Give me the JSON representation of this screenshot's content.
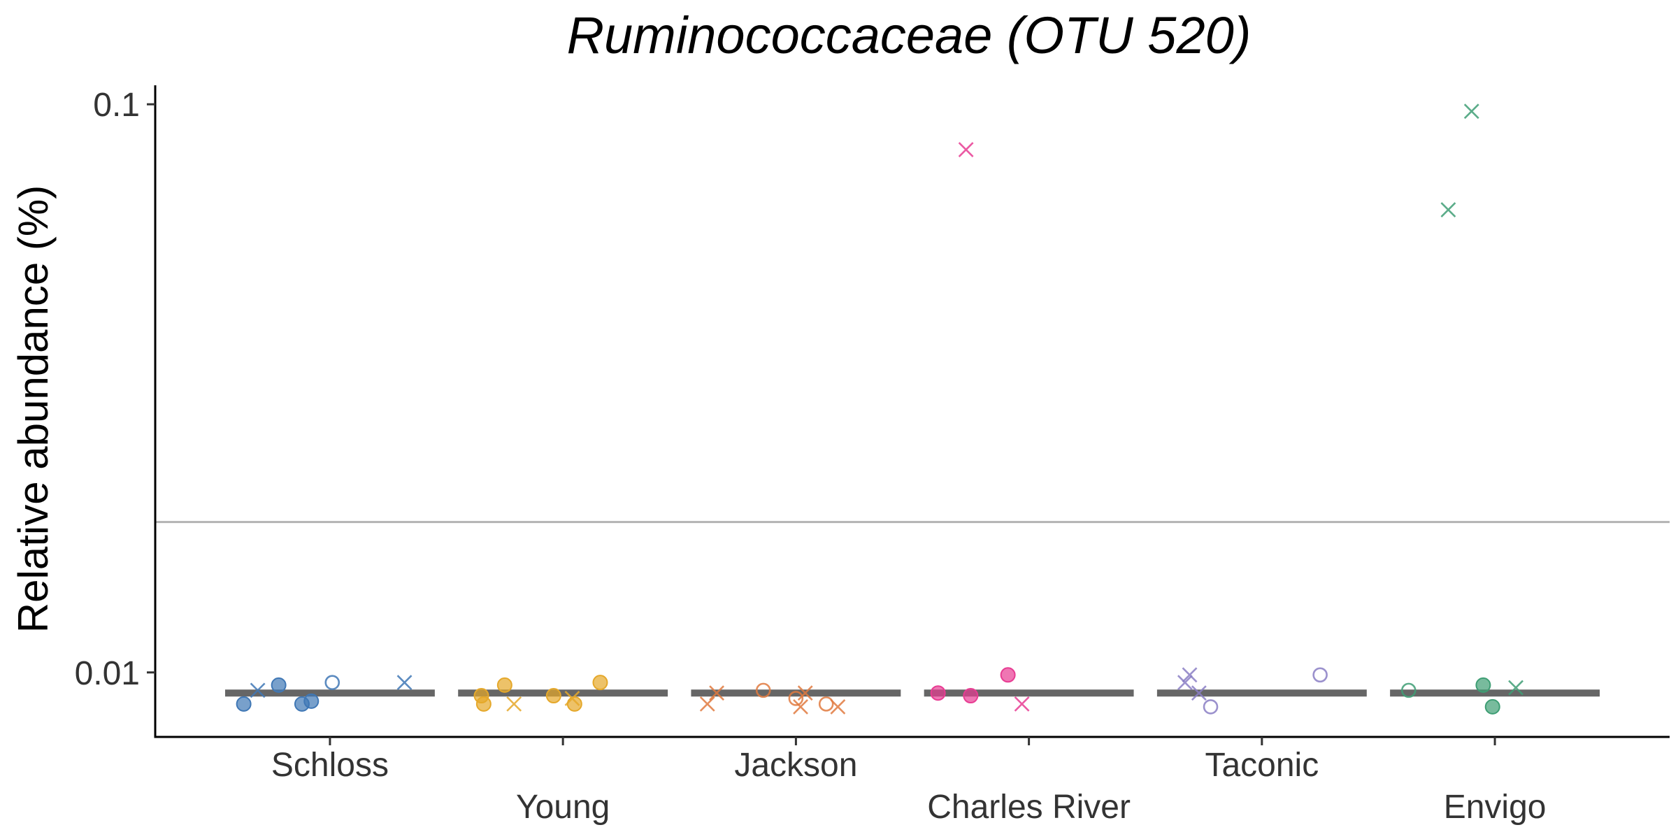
{
  "chart_data": {
    "type": "scatter",
    "title": "Ruminococcaceae (OTU 520)",
    "xlabel": "",
    "ylabel": "Relative abundance (%)",
    "y_scale": "log10",
    "ylim": [
      0.0077,
      0.108
    ],
    "yticks": [
      {
        "value": 0.01,
        "label": "0.01"
      },
      {
        "value": 0.1,
        "label": "0.1"
      }
    ],
    "categories": [
      "Schloss",
      "Young",
      "Jackson",
      "Charles River",
      "Taconic",
      "Envigo"
    ],
    "limit_of_detection": 0.0184,
    "medians": [
      0.0092,
      0.0092,
      0.0092,
      0.0092,
      0.0092,
      0.0092
    ],
    "series": [
      {
        "category": "Schloss",
        "color": "#3F77B5",
        "points": [
          {
            "x": -0.37,
            "y": 0.0088,
            "shape": "filled"
          },
          {
            "x": -0.31,
            "y": 0.0093,
            "shape": "x"
          },
          {
            "x": -0.22,
            "y": 0.0095,
            "shape": "filled"
          },
          {
            "x": -0.12,
            "y": 0.0088,
            "shape": "filled"
          },
          {
            "x": -0.08,
            "y": 0.0089,
            "shape": "filled"
          },
          {
            "x": 0.01,
            "y": 0.0096,
            "shape": "open"
          },
          {
            "x": 0.32,
            "y": 0.0096,
            "shape": "x"
          }
        ]
      },
      {
        "category": "Young",
        "color": "#E5A82A",
        "points": [
          {
            "x": -0.35,
            "y": 0.0091,
            "shape": "filled"
          },
          {
            "x": -0.34,
            "y": 0.0088,
            "shape": "filled"
          },
          {
            "x": -0.25,
            "y": 0.0095,
            "shape": "filled"
          },
          {
            "x": -0.21,
            "y": 0.0088,
            "shape": "x"
          },
          {
            "x": -0.04,
            "y": 0.0091,
            "shape": "filled"
          },
          {
            "x": 0.04,
            "y": 0.009,
            "shape": "x"
          },
          {
            "x": 0.05,
            "y": 0.0088,
            "shape": "filled"
          },
          {
            "x": 0.16,
            "y": 0.0096,
            "shape": "filled"
          }
        ]
      },
      {
        "category": "Jackson",
        "color": "#E07A3F",
        "points": [
          {
            "x": -0.38,
            "y": 0.0088,
            "shape": "x"
          },
          {
            "x": -0.34,
            "y": 0.0092,
            "shape": "x"
          },
          {
            "x": -0.14,
            "y": 0.0093,
            "shape": "open"
          },
          {
            "x": 0.0,
            "y": 0.009,
            "shape": "open"
          },
          {
            "x": 0.02,
            "y": 0.0087,
            "shape": "x"
          },
          {
            "x": 0.04,
            "y": 0.0092,
            "shape": "x"
          },
          {
            "x": 0.13,
            "y": 0.0088,
            "shape": "open"
          },
          {
            "x": 0.18,
            "y": 0.0087,
            "shape": "x"
          }
        ]
      },
      {
        "category": "Charles River",
        "color": "#E83C93",
        "points": [
          {
            "x": -0.39,
            "y": 0.0092,
            "shape": "filled"
          },
          {
            "x": -0.27,
            "y": 0.0832,
            "shape": "x"
          },
          {
            "x": -0.25,
            "y": 0.0091,
            "shape": "filled"
          },
          {
            "x": -0.09,
            "y": 0.0099,
            "shape": "filled"
          },
          {
            "x": -0.03,
            "y": 0.0088,
            "shape": "x"
          }
        ]
      },
      {
        "category": "Taconic",
        "color": "#8A7EC4",
        "points": [
          {
            "x": -0.33,
            "y": 0.0096,
            "shape": "x"
          },
          {
            "x": -0.31,
            "y": 0.0099,
            "shape": "x"
          },
          {
            "x": -0.27,
            "y": 0.0092,
            "shape": "x"
          },
          {
            "x": -0.22,
            "y": 0.0087,
            "shape": "open"
          },
          {
            "x": 0.25,
            "y": 0.0099,
            "shape": "open"
          }
        ]
      },
      {
        "category": "Envigo",
        "color": "#3E9E74",
        "points": [
          {
            "x": -0.37,
            "y": 0.0093,
            "shape": "open"
          },
          {
            "x": -0.2,
            "y": 0.0652,
            "shape": "x"
          },
          {
            "x": -0.1,
            "y": 0.0972,
            "shape": "x"
          },
          {
            "x": -0.05,
            "y": 0.0095,
            "shape": "filled"
          },
          {
            "x": -0.01,
            "y": 0.0087,
            "shape": "filled"
          },
          {
            "x": 0.09,
            "y": 0.0094,
            "shape": "x"
          }
        ]
      }
    ]
  }
}
